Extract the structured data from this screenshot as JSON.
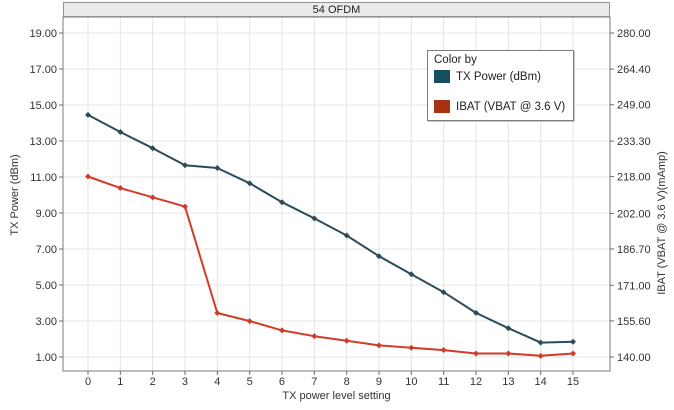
{
  "panel_title": "54 OFDM",
  "legend": {
    "title": "Color by",
    "items": [
      {
        "label": "TX Power (dBm)",
        "color": "#16505f"
      },
      {
        "label": "IBAT (VBAT @ 3.6 V)",
        "color": "#a93114"
      }
    ]
  },
  "chart_data": {
    "type": "line",
    "title": "54 OFDM",
    "xlabel": "TX power level setting",
    "ylabel_left": "TX Power (dBm)",
    "ylabel_right": "IBAT (VBAT @ 3.6 V)(mAmp)",
    "x": [
      0,
      1,
      2,
      3,
      4,
      5,
      6,
      7,
      8,
      9,
      10,
      11,
      12,
      13,
      14,
      15
    ],
    "x_tick_labels": [
      "0",
      "1",
      "2",
      "3",
      "4",
      "5",
      "6",
      "7",
      "8",
      "9",
      "10",
      "11",
      "12",
      "13",
      "14",
      "15"
    ],
    "series": [
      {
        "name": "TX Power (dBm)",
        "axis": "left",
        "color": "#2e4b5c",
        "values": [
          14.45,
          13.5,
          12.6,
          11.65,
          11.5,
          10.65,
          9.6,
          8.7,
          7.75,
          6.6,
          5.6,
          4.6,
          3.45,
          2.6,
          1.8,
          1.85
        ]
      },
      {
        "name": "IBAT (VBAT @ 3.6 V)",
        "axis": "right",
        "color": "#d23b27",
        "values": [
          218,
          213,
          209,
          205,
          159,
          155.5,
          151.5,
          149,
          147,
          145,
          144,
          143,
          141.5,
          141.5,
          140.5,
          141.5
        ]
      }
    ],
    "left_axis": {
      "tick_values": [
        19,
        17,
        15,
        13,
        11,
        9,
        7,
        5,
        3,
        1
      ],
      "tick_labels": [
        "19.00",
        "17.00",
        "15.00",
        "13.00",
        "11.00",
        "9.00",
        "7.00",
        "5.00",
        "3.00",
        "1.00"
      ],
      "range": [
        1,
        19
      ]
    },
    "right_axis": {
      "tick_values": [
        280,
        264.4,
        249,
        233.3,
        218,
        202,
        186.7,
        171,
        155.6,
        140
      ],
      "tick_labels": [
        "280.00",
        "264.40",
        "249.00",
        "233.30",
        "218.00",
        "202.00",
        "186.70",
        "171.00",
        "155.60",
        "140.00"
      ],
      "range": [
        140,
        280
      ]
    },
    "grid": true,
    "legend_position": "inside-top-right"
  },
  "colors": {
    "grid": "#e4e4e4",
    "plot_border": "#7a7a7a",
    "tick": "#6e6e6e",
    "tick_text": "#333333",
    "header_bg": "#ebebeb"
  }
}
